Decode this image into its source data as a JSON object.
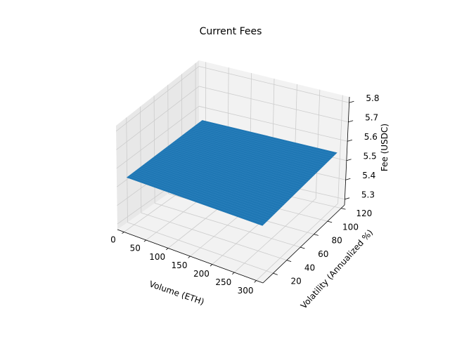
{
  "chart_data": {
    "type": "surface",
    "title": "Current Fees",
    "xlabel": "Volume (ETH)",
    "ylabel": "Volatility (Annualized %)",
    "zlabel": "Fee (USDC)",
    "x_ticks": [
      "0",
      "50",
      "100",
      "150",
      "200",
      "250",
      "300"
    ],
    "y_ticks": [
      "20",
      "40",
      "60",
      "80",
      "100",
      "120"
    ],
    "z_ticks": [
      "5.3",
      "5.4",
      "5.5",
      "5.6",
      "5.7",
      "5.8"
    ],
    "xlim": [
      -15,
      315
    ],
    "ylim": [
      5,
      125
    ],
    "zlim": [
      5.27,
      5.83
    ],
    "surface": {
      "x_range": [
        0,
        300
      ],
      "y_range": [
        10,
        120
      ],
      "z_value": 5.55,
      "color": "#1f77b4",
      "edge_color": "#3a8cc8"
    },
    "grid": true
  },
  "colors": {
    "pane_left": "#e8e8e8",
    "pane_back": "#f2f2f2",
    "pane_floor": "#f2f2f2",
    "grid": "#cccccc",
    "axis": "#000000"
  }
}
